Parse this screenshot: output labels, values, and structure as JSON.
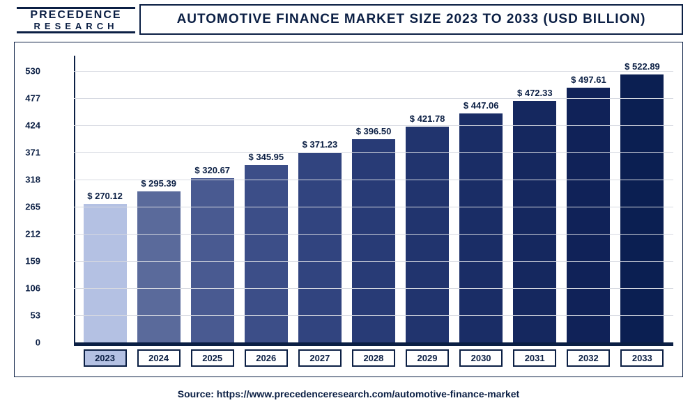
{
  "logo": {
    "top": "PRECEDENCE",
    "bottom": "RESEARCH"
  },
  "title": "AUTOMOTIVE FINANCE MARKET SIZE 2023 TO 2033 (USD BILLION)",
  "chart": {
    "type": "bar",
    "ylim": [
      0,
      560
    ],
    "yticks": [
      0,
      53,
      106,
      159,
      212,
      265,
      318,
      371,
      424,
      477,
      530
    ],
    "grid_color": "#d6d9e1",
    "axis_color": "#0b1f44",
    "background_color": "#ffffff",
    "currency_prefix": "$ ",
    "label_fontsize": 13,
    "title_fontsize": 19,
    "bar_width": 0.78,
    "categories": [
      "2023",
      "2024",
      "2025",
      "2026",
      "2027",
      "2028",
      "2029",
      "2030",
      "2031",
      "2032",
      "2033"
    ],
    "values": [
      270.12,
      295.39,
      320.67,
      345.95,
      371.23,
      396.5,
      421.78,
      447.06,
      472.33,
      497.61,
      522.89
    ],
    "bar_colors": [
      "#b4c1e3",
      "#5a6a9b",
      "#495a91",
      "#3c4e88",
      "#31447f",
      "#283b76",
      "#21346e",
      "#1a2d66",
      "#15285f",
      "#102258",
      "#0b1f52"
    ],
    "highlight_index": 0
  },
  "source": "Source: https://www.precedenceresearch.com/automotive-finance-market"
}
